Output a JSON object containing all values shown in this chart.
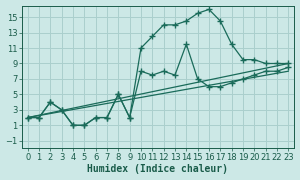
{
  "xlabel": "Humidex (Indice chaleur)",
  "background_color": "#cce8e6",
  "grid_color": "#aacfcd",
  "line_color": "#1a6b5a",
  "xlim": [
    -0.5,
    23.5
  ],
  "ylim": [
    -2.0,
    16.5
  ],
  "xticks": [
    0,
    1,
    2,
    3,
    4,
    5,
    6,
    7,
    8,
    9,
    10,
    11,
    12,
    13,
    14,
    15,
    16,
    17,
    18,
    19,
    20,
    21,
    22,
    23
  ],
  "yticks": [
    -1,
    1,
    3,
    5,
    7,
    9,
    11,
    13,
    15
  ],
  "curve_upper_x": [
    0,
    1,
    2,
    3,
    4,
    5,
    6,
    7,
    8,
    9,
    10,
    11,
    12,
    13,
    14,
    15,
    16,
    17,
    18,
    19,
    20,
    21,
    22,
    23
  ],
  "curve_upper_y": [
    2,
    2,
    4,
    3,
    1,
    1,
    2,
    2,
    5,
    2,
    11,
    12.5,
    14,
    14,
    14.5,
    15.5,
    16,
    14.5,
    11.5,
    9.5,
    9.5,
    9,
    9,
    9
  ],
  "curve_lower_x": [
    0,
    1,
    2,
    3,
    4,
    5,
    6,
    7,
    8,
    9,
    10,
    11,
    12,
    13,
    14,
    15,
    16,
    17,
    18,
    19,
    20,
    21,
    22,
    23
  ],
  "curve_lower_y": [
    2,
    2,
    4,
    3,
    1,
    1,
    2,
    2,
    5,
    2,
    8,
    7.5,
    8,
    7.5,
    11.5,
    7,
    6,
    6,
    6.5,
    7,
    7.5,
    8,
    8,
    8.5
  ],
  "line1_x": [
    0,
    23
  ],
  "line1_y": [
    2,
    9
  ],
  "line2_x": [
    0,
    23
  ],
  "line2_y": [
    2,
    8.0
  ],
  "font_color": "#1a5c4a",
  "font_size": 7
}
